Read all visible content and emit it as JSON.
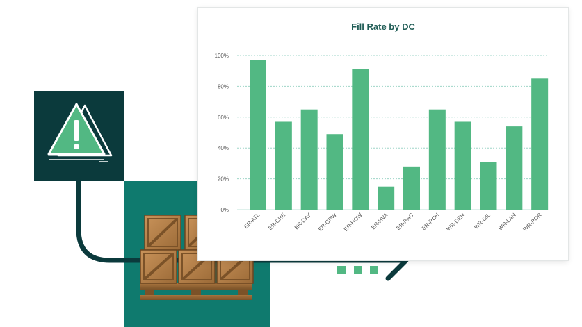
{
  "colors": {
    "dark_teal": "#0b3a3c",
    "teal": "#0f7a6e",
    "bar_green": "#52b883",
    "gridline": "#9fd5c8",
    "title": "#1f5c55",
    "axis_text": "#555555"
  },
  "icons": {
    "warning": "warning-triangle-icon",
    "crates": "wooden-crates-pallet-icon",
    "arrow": "arrow-right-icon"
  },
  "chart_data": {
    "type": "bar",
    "title": "Fill Rate by DC",
    "xlabel": "",
    "ylabel": "",
    "categories": [
      "ER-ATL",
      "ER-CHE",
      "ER-DAY",
      "ER-GRW",
      "ER-HOW",
      "ER-HVA",
      "ER-RAC",
      "ER-RCH",
      "WR-DEN",
      "WR-GIL",
      "WR-LAN",
      "WR-POR"
    ],
    "values": [
      97,
      57,
      65,
      49,
      91,
      15,
      28,
      65,
      57,
      31,
      54,
      85
    ],
    "value_unit": "%",
    "ylim": [
      0,
      100
    ],
    "y_ticks": [
      0,
      20,
      40,
      60,
      80,
      100
    ],
    "y_tick_labels": [
      "0%",
      "20%",
      "40%",
      "60%",
      "80%",
      "100%"
    ],
    "grid": true,
    "legend": "none"
  }
}
